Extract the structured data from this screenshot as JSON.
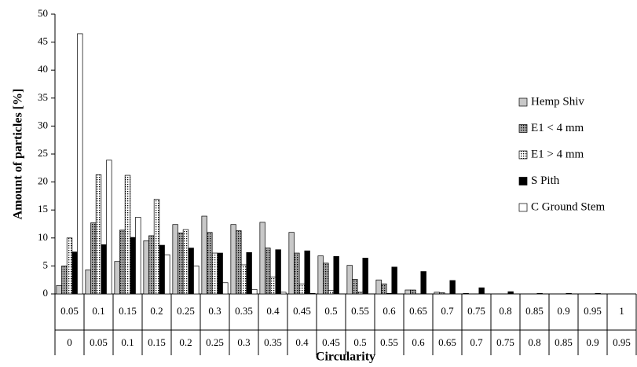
{
  "chart_data": {
    "type": "bar",
    "y_label": "Amount of particles [%]",
    "x_label": "Circularity",
    "categories": [
      "0.05",
      "0.1",
      "0.15",
      "0.2",
      "0.25",
      "0.3",
      "0.35",
      "0.4",
      "0.45",
      "0.5",
      "0.55",
      "0.6",
      "0.65",
      "0.7",
      "0.75",
      "0.8",
      "0.85",
      "0.9",
      "0.95",
      "1"
    ],
    "category_lower": [
      "0",
      "0.05",
      "0.1",
      "0.15",
      "0.2",
      "0.25",
      "0.3",
      "0.35",
      "0.4",
      "0.45",
      "0.5",
      "0.55",
      "0.6",
      "0.65",
      "0.7",
      "0.75",
      "0.8",
      "0.85",
      "0.9",
      "0.95"
    ],
    "series": [
      {
        "name": "Hemp Shiv",
        "color": "#c8c8c8",
        "values": [
          1.5,
          4.3,
          5.8,
          9.5,
          12.4,
          13.9,
          12.4,
          12.8,
          11.0,
          6.8,
          5.1,
          2.5,
          0.7,
          0.3,
          0.1,
          0,
          0,
          0,
          0,
          0
        ]
      },
      {
        "name": "E1 < 4 mm",
        "color": "#a6a6a6",
        "pattern": "dots",
        "values": [
          5,
          12.7,
          11.4,
          10.4,
          10.9,
          11.0,
          11.3,
          8.2,
          7.3,
          5.5,
          2.6,
          1.8,
          0.7,
          0.2,
          0,
          0,
          0,
          0,
          0,
          0
        ]
      },
      {
        "name": "E1 > 4 mm",
        "color": "#ffffff",
        "pattern": "dots",
        "values": [
          10,
          21.3,
          21.2,
          16.9,
          11.5,
          7.3,
          5.2,
          3.0,
          1.8,
          0.6,
          0.3,
          0.1,
          0,
          0,
          0,
          0,
          0,
          0,
          0,
          0
        ]
      },
      {
        "name": "S Pith",
        "color": "#000000",
        "values": [
          7.5,
          8.8,
          10.1,
          8.7,
          8.2,
          7.3,
          7.4,
          7.9,
          7.7,
          6.7,
          6.4,
          4.8,
          4.0,
          2.4,
          1.1,
          0.4,
          0.1,
          0.1,
          0.1,
          0
        ]
      },
      {
        "name": "C Ground Stem",
        "color": "#ffffff",
        "values": [
          46.5,
          23.9,
          13.7,
          7.0,
          5.0,
          2.0,
          0.8,
          0.3,
          0.1,
          0,
          0,
          0,
          0,
          0,
          0,
          0,
          0,
          0,
          0,
          0
        ]
      }
    ],
    "ylim": [
      0,
      50
    ],
    "yticks": [
      0,
      5,
      10,
      15,
      20,
      25,
      30,
      35,
      40,
      45,
      50
    ]
  }
}
